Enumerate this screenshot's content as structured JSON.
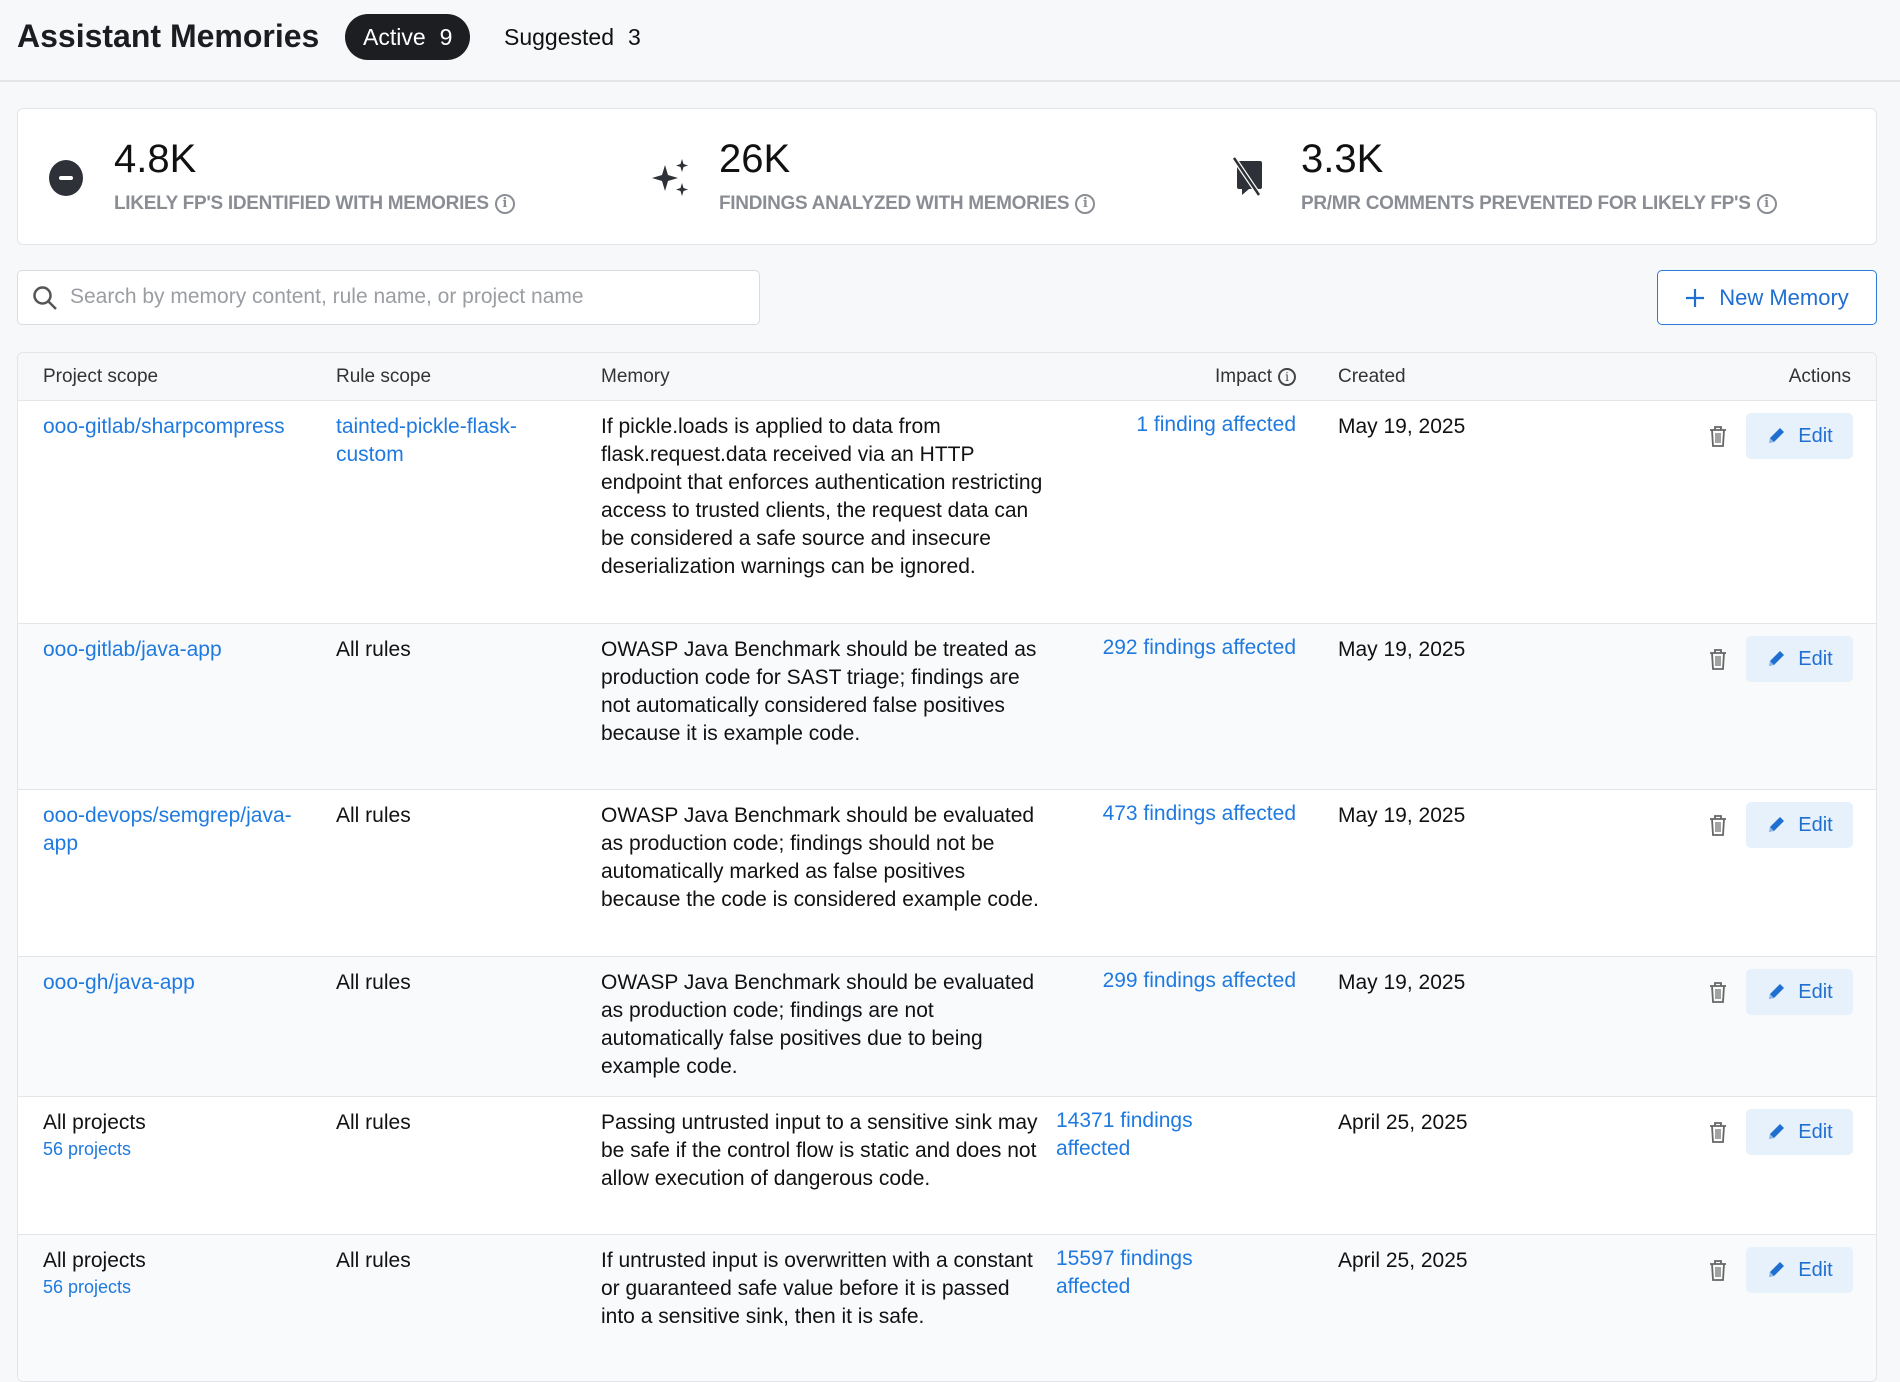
{
  "header": {
    "title": "Assistant Memories",
    "tabs": [
      {
        "label": "Active",
        "count": "9"
      },
      {
        "label": "Suggested",
        "count": "3"
      }
    ]
  },
  "stats": [
    {
      "value": "4.8K",
      "label": "LIKELY FP'S IDENTIFIED WITH MEMORIES",
      "icon": "minus-circle-icon"
    },
    {
      "value": "26K",
      "label": "FINDINGS ANALYZED WITH MEMORIES",
      "icon": "sparkles-icon"
    },
    {
      "value": "3.3K",
      "label": "PR/MR COMMENTS PREVENTED FOR LIKELY FP'S",
      "icon": "comment-slash-icon"
    }
  ],
  "search": {
    "placeholder": "Search by memory content, rule name, or project name",
    "value": ""
  },
  "new_memory_label": "New Memory",
  "table": {
    "columns": {
      "project": "Project scope",
      "rule": "Rule scope",
      "memory": "Memory",
      "impact": "Impact",
      "created": "Created",
      "actions": "Actions"
    },
    "edit_label": "Edit",
    "rows": [
      {
        "project": "ooo-gitlab/sharpcompress",
        "project_sub": "",
        "rule": "tainted-pickle-flask-custom",
        "memory": "If pickle.loads is applied to data from flask.request.data received via an HTTP endpoint that enforces authentication restricting access to trusted clients, the request data can be considered a safe source and insecure deserialization warnings can be ignored.",
        "impact": "1 finding affected",
        "created": "May 19, 2025"
      },
      {
        "project": "ooo-gitlab/java-app",
        "project_sub": "",
        "rule": "All rules",
        "memory": "OWASP Java Benchmark should be treated as production code for SAST triage; findings are not automatically considered false positives because it is example code.",
        "impact": "292 findings affected",
        "created": "May 19, 2025"
      },
      {
        "project": "ooo-devops/semgrep/java-app",
        "project_sub": "",
        "rule": "All rules",
        "memory": "OWASP Java Benchmark should be evaluated as production code; findings should not be automatically marked as false positives because the code is considered example code.",
        "impact": "473 findings affected",
        "created": "May 19, 2025"
      },
      {
        "project": "ooo-gh/java-app",
        "project_sub": "",
        "rule": "All rules",
        "memory": "OWASP Java Benchmark should be evaluated as production code; findings are not automatically false positives due to being example code.",
        "impact": "299 findings affected",
        "created": "May 19, 2025"
      },
      {
        "project": "All projects",
        "project_sub": "56 projects",
        "rule": "All rules",
        "memory": "Passing untrusted input to a sensitive sink may be safe if the control flow is static and does not allow execution of dangerous code.",
        "impact": "14371 findings affected",
        "created": "April 25, 2025"
      },
      {
        "project": "All projects",
        "project_sub": "56 projects",
        "rule": "All rules",
        "memory": "If untrusted input is overwritten with a constant or guaranteed safe value before it is passed into a sensitive sink, then it is safe.",
        "impact": "15597 findings affected",
        "created": "April 25, 2025"
      }
    ]
  }
}
